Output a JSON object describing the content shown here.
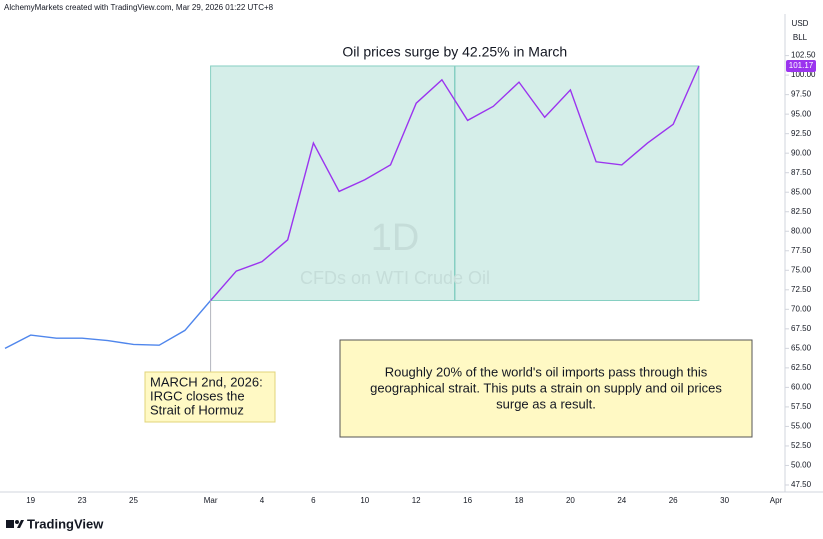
{
  "chart_data": {
    "type": "line",
    "header": "AlchemyMarkets created with TradingView.com, Mar 29, 2026 01:22 UTC+8",
    "title": "Oil prices surge by 42.25% in March",
    "watermark": "1D",
    "symbol": "CFDs on WTI Crude Oil",
    "currency": "USD",
    "unit": "BLL",
    "logo": "TradingView",
    "categories": [
      null,
      "19",
      null,
      "23",
      null,
      "25",
      null,
      null,
      "Mar",
      null,
      "4",
      null,
      "6",
      null,
      "10",
      null,
      "12",
      null,
      "16",
      null,
      "18",
      null,
      "20",
      null,
      "24",
      null,
      "26",
      null,
      "30",
      null,
      "Apr"
    ],
    "values": [
      65.0,
      66.7,
      66.3,
      66.3,
      66.0,
      65.5,
      65.4,
      67.3,
      71.13,
      74.9,
      76.1,
      78.9,
      91.3,
      85.1,
      86.6,
      88.5,
      96.4,
      99.4,
      94.2,
      96.0,
      99.1,
      94.6,
      98.1,
      88.9,
      88.5,
      91.3,
      93.7,
      101.17,
      null,
      null,
      null
    ],
    "color": "#4f86ec",
    "highlight": {
      "from": 8,
      "to": 27,
      "color": "#9b34ef",
      "fill": "#d5eee9",
      "border": "#86cfc2"
    },
    "ylim": [
      46.6,
      107.7
    ],
    "yticks": [
      {
        "value": 47.5,
        "label": "47.50"
      },
      {
        "value": 50,
        "label": "50.00"
      },
      {
        "value": 52.5,
        "label": "52.50"
      },
      {
        "value": 55,
        "label": "55.00"
      },
      {
        "value": 57.5,
        "label": "57.50"
      },
      {
        "value": 60,
        "label": "60.00"
      },
      {
        "value": 62.5,
        "label": "62.50"
      },
      {
        "value": 65,
        "label": "65.00"
      },
      {
        "value": 67.5,
        "label": "67.50"
      },
      {
        "value": 70,
        "label": "70.00"
      },
      {
        "value": 72.5,
        "label": "72.50"
      },
      {
        "value": 75,
        "label": "75.00"
      },
      {
        "value": 77.5,
        "label": "77.50"
      },
      {
        "value": 80,
        "label": "80.00"
      },
      {
        "value": 82.5,
        "label": "82.50"
      },
      {
        "value": 85,
        "label": "85.00"
      },
      {
        "value": 87.5,
        "label": "87.50"
      },
      {
        "value": 90,
        "label": "90.00"
      },
      {
        "value": 92.5,
        "label": "92.50"
      },
      {
        "value": 95,
        "label": "95.00"
      },
      {
        "value": 97.5,
        "label": "97.50"
      },
      {
        "value": 100,
        "label": "100.00"
      },
      {
        "value": 102.5,
        "label": "102.50"
      }
    ],
    "annotations": [
      {
        "lines": [
          "MARCH 2nd, 2026:",
          "IRGC closes the",
          "Strait of Hormuz"
        ]
      },
      {
        "lines": [
          "Roughly 20% of the world's oil imports pass through this",
          "geographical strait. This puts a strain on supply and oil prices",
          "surge as a result."
        ]
      }
    ]
  }
}
